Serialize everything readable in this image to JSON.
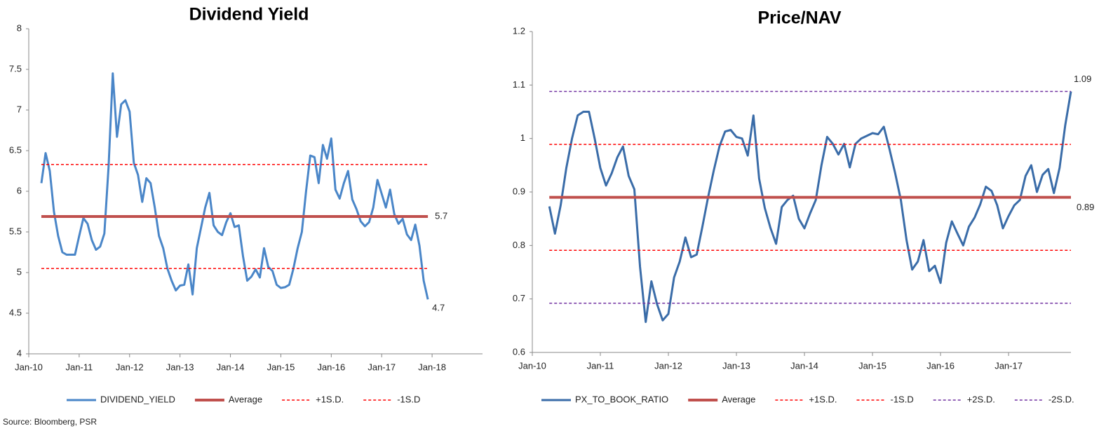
{
  "chart_data": [
    {
      "type": "line",
      "title": "Dividend Yield",
      "x": [
        "2010-04",
        "2010-05",
        "2010-06",
        "2010-07",
        "2010-08",
        "2010-09",
        "2010-10",
        "2010-11",
        "2010-12",
        "2011-01",
        "2011-02",
        "2011-03",
        "2011-04",
        "2011-05",
        "2011-06",
        "2011-07",
        "2011-08",
        "2011-09",
        "2011-10",
        "2011-11",
        "2011-12",
        "2012-01",
        "2012-02",
        "2012-03",
        "2012-04",
        "2012-05",
        "2012-06",
        "2012-07",
        "2012-08",
        "2012-09",
        "2012-10",
        "2012-11",
        "2012-12",
        "2013-01",
        "2013-02",
        "2013-03",
        "2013-04",
        "2013-05",
        "2013-06",
        "2013-07",
        "2013-08",
        "2013-09",
        "2013-10",
        "2013-11",
        "2013-12",
        "2014-01",
        "2014-02",
        "2014-03",
        "2014-04",
        "2014-05",
        "2014-06",
        "2014-07",
        "2014-08",
        "2014-09",
        "2014-10",
        "2014-11",
        "2014-12",
        "2015-01",
        "2015-02",
        "2015-03",
        "2015-04",
        "2015-05",
        "2015-06",
        "2015-07",
        "2015-08",
        "2015-09",
        "2015-10",
        "2015-11",
        "2015-12",
        "2016-01",
        "2016-02",
        "2016-03",
        "2016-04",
        "2016-05",
        "2016-06",
        "2016-07",
        "2016-08",
        "2016-09",
        "2016-10",
        "2016-11",
        "2016-12",
        "2017-01",
        "2017-02",
        "2017-03",
        "2017-04",
        "2017-05",
        "2017-06",
        "2017-07",
        "2017-08",
        "2017-09",
        "2017-10",
        "2017-11",
        "2017-12"
      ],
      "series": [
        {
          "name": "DIVIDEND_YIELD",
          "color": "#4a86c8",
          "values": [
            6.1,
            6.47,
            6.25,
            5.75,
            5.45,
            5.25,
            5.22,
            5.22,
            5.22,
            5.45,
            5.67,
            5.6,
            5.4,
            5.28,
            5.32,
            5.48,
            6.3,
            7.45,
            6.67,
            7.07,
            7.12,
            6.98,
            6.35,
            6.2,
            5.87,
            6.16,
            6.1,
            5.8,
            5.45,
            5.3,
            5.05,
            4.9,
            4.78,
            4.84,
            4.85,
            5.1,
            4.73,
            5.3,
            5.55,
            5.8,
            5.98,
            5.58,
            5.5,
            5.46,
            5.62,
            5.73,
            5.56,
            5.58,
            5.2,
            4.9,
            4.95,
            5.04,
            4.94,
            5.3,
            5.07,
            5.02,
            4.85,
            4.81,
            4.82,
            4.85,
            5.05,
            5.3,
            5.5,
            6.0,
            6.44,
            6.42,
            6.1,
            6.57,
            6.4,
            6.65,
            6.02,
            5.91,
            6.1,
            6.25,
            5.9,
            5.78,
            5.63,
            5.57,
            5.62,
            5.8,
            6.14,
            5.97,
            5.8,
            6.02,
            5.72,
            5.6,
            5.66,
            5.47,
            5.4,
            5.59,
            5.33,
            4.9,
            4.67
          ]
        }
      ],
      "reference_lines": [
        {
          "name": "Average",
          "color": "#c0504d",
          "style": "solid",
          "value": 5.69,
          "label": "5.7"
        },
        {
          "name": "+1S.D.",
          "color": "#ff0000",
          "style": "dashed",
          "value": 6.33
        },
        {
          "name": "-1S.D",
          "color": "#ff0000",
          "style": "dashed",
          "value": 5.05
        }
      ],
      "annotations": [
        {
          "x": "2017-12",
          "y": 4.67,
          "label": "4.7"
        }
      ],
      "xlim": [
        "2010-01",
        "2019-01"
      ],
      "xticks": [
        {
          "value": "2010-01",
          "label": "Jan-10"
        },
        {
          "value": "2011-01",
          "label": "Jan-11"
        },
        {
          "value": "2012-01",
          "label": "Jan-12"
        },
        {
          "value": "2013-01",
          "label": "Jan-13"
        },
        {
          "value": "2014-01",
          "label": "Jan-14"
        },
        {
          "value": "2015-01",
          "label": "Jan-15"
        },
        {
          "value": "2016-01",
          "label": "Jan-16"
        },
        {
          "value": "2017-01",
          "label": "Jan-17"
        },
        {
          "value": "2018-01",
          "label": "Jan-18"
        }
      ],
      "ylim": [
        4,
        8
      ],
      "yticks": [
        4,
        4.5,
        5,
        5.5,
        6,
        6.5,
        7,
        7.5,
        8
      ],
      "legend": "bottom"
    },
    {
      "type": "line",
      "title": "Price/NAV",
      "x": [
        "2010-04",
        "2010-05",
        "2010-06",
        "2010-07",
        "2010-08",
        "2010-09",
        "2010-10",
        "2010-11",
        "2010-12",
        "2011-01",
        "2011-02",
        "2011-03",
        "2011-04",
        "2011-05",
        "2011-06",
        "2011-07",
        "2011-08",
        "2011-09",
        "2011-10",
        "2011-11",
        "2011-12",
        "2012-01",
        "2012-02",
        "2012-03",
        "2012-04",
        "2012-05",
        "2012-06",
        "2012-07",
        "2012-08",
        "2012-09",
        "2012-10",
        "2012-11",
        "2012-12",
        "2013-01",
        "2013-02",
        "2013-03",
        "2013-04",
        "2013-05",
        "2013-06",
        "2013-07",
        "2013-08",
        "2013-09",
        "2013-10",
        "2013-11",
        "2013-12",
        "2014-01",
        "2014-02",
        "2014-03",
        "2014-04",
        "2014-05",
        "2014-06",
        "2014-07",
        "2014-08",
        "2014-09",
        "2014-10",
        "2014-11",
        "2014-12",
        "2015-01",
        "2015-02",
        "2015-03",
        "2015-04",
        "2015-05",
        "2015-06",
        "2015-07",
        "2015-08",
        "2015-09",
        "2015-10",
        "2015-11",
        "2015-12",
        "2016-01",
        "2016-02",
        "2016-03",
        "2016-04",
        "2016-05",
        "2016-06",
        "2016-07",
        "2016-08",
        "2016-09",
        "2016-10",
        "2016-11",
        "2016-12",
        "2017-01",
        "2017-02",
        "2017-03",
        "2017-04",
        "2017-05",
        "2017-06",
        "2017-07",
        "2017-08",
        "2017-09",
        "2017-10",
        "2017-11",
        "2017-12"
      ],
      "series": [
        {
          "name": "PX_TO_BOOK_RATIO",
          "color": "#3a6ca8",
          "values": [
            0.873,
            0.822,
            0.875,
            0.945,
            1.0,
            1.043,
            1.05,
            1.05,
            1.0,
            0.945,
            0.912,
            0.935,
            0.965,
            0.985,
            0.93,
            0.905,
            0.76,
            0.657,
            0.733,
            0.69,
            0.66,
            0.672,
            0.74,
            0.77,
            0.815,
            0.778,
            0.783,
            0.835,
            0.89,
            0.94,
            0.985,
            1.013,
            1.016,
            1.003,
            1.0,
            0.968,
            1.043,
            0.925,
            0.87,
            0.833,
            0.803,
            0.872,
            0.885,
            0.893,
            0.85,
            0.832,
            0.86,
            0.885,
            0.95,
            1.003,
            0.99,
            0.97,
            0.99,
            0.946,
            0.99,
            1.0,
            1.005,
            1.01,
            1.008,
            1.022,
            0.98,
            0.935,
            0.885,
            0.81,
            0.755,
            0.77,
            0.81,
            0.752,
            0.762,
            0.73,
            0.805,
            0.845,
            0.822,
            0.8,
            0.835,
            0.852,
            0.877,
            0.91,
            0.902,
            0.875,
            0.832,
            0.855,
            0.875,
            0.885,
            0.93,
            0.95,
            0.9,
            0.932,
            0.943,
            0.898,
            0.945,
            1.025,
            1.088
          ]
        }
      ],
      "reference_lines": [
        {
          "name": "Average",
          "color": "#c0504d",
          "style": "solid",
          "value": 0.89,
          "label": "0.89"
        },
        {
          "name": "+1S.D.",
          "color": "#ff0000",
          "style": "dashed",
          "value": 0.989
        },
        {
          "name": "-1S.D",
          "color": "#ff0000",
          "style": "dashed",
          "value": 0.791
        },
        {
          "name": "+2S.D.",
          "color": "#7030a0",
          "style": "dashed",
          "value": 1.088
        },
        {
          "name": "-2S.D.",
          "color": "#7030a0",
          "style": "dashed",
          "value": 0.692
        }
      ],
      "annotations": [
        {
          "x": "2017-12",
          "y": 1.088,
          "label": "1.09"
        }
      ],
      "xlim": [
        "2010-01",
        "2017-12"
      ],
      "xticks": [
        {
          "value": "2010-01",
          "label": "Jan-10"
        },
        {
          "value": "2011-01",
          "label": "Jan-11"
        },
        {
          "value": "2012-01",
          "label": "Jan-12"
        },
        {
          "value": "2013-01",
          "label": "Jan-13"
        },
        {
          "value": "2014-01",
          "label": "Jan-14"
        },
        {
          "value": "2015-01",
          "label": "Jan-15"
        },
        {
          "value": "2016-01",
          "label": "Jan-16"
        },
        {
          "value": "2017-01",
          "label": "Jan-17"
        }
      ],
      "ylim": [
        0.6,
        1.2
      ],
      "yticks": [
        0.6,
        0.7,
        0.8,
        0.9,
        1,
        1.1,
        1.2
      ],
      "legend": "bottom"
    }
  ],
  "source": "Source: Bloomberg, PSR"
}
